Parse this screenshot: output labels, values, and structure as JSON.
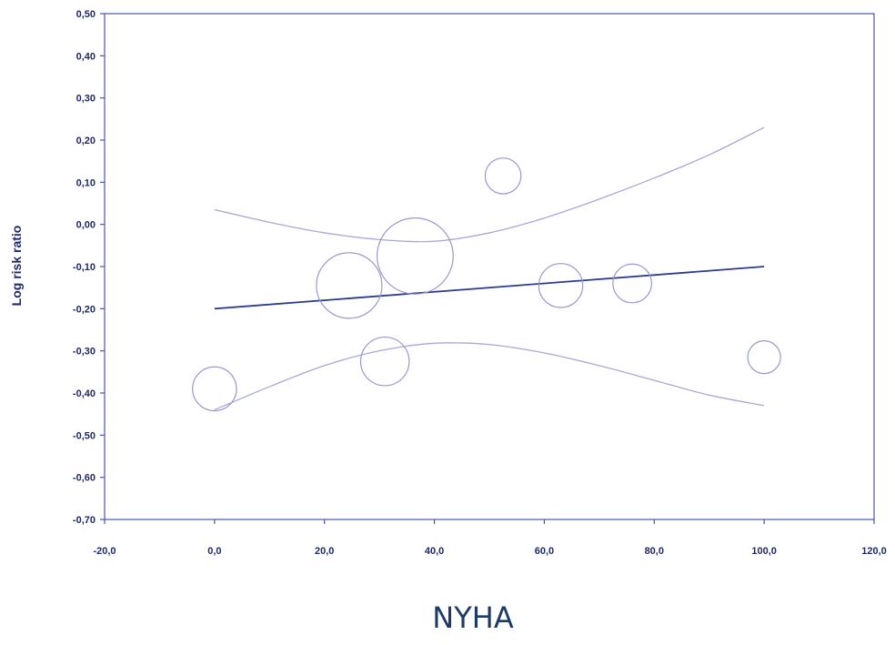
{
  "chart_data": {
    "type": "scatter",
    "title": "",
    "xlabel": "NYHA",
    "ylabel": "Log risk ratio",
    "xlim": [
      -20,
      120
    ],
    "ylim": [
      -0.7,
      0.5
    ],
    "x_ticks": [
      -20,
      0,
      20,
      40,
      60,
      80,
      100,
      120
    ],
    "x_tick_labels": [
      "-20,0",
      "0,0",
      "20,0",
      "40,0",
      "60,0",
      "80,0",
      "100,0",
      "120,0"
    ],
    "y_ticks": [
      0.5,
      0.4,
      0.3,
      0.2,
      0.1,
      0.0,
      -0.1,
      -0.2,
      -0.3,
      -0.4,
      -0.5,
      -0.6,
      -0.7
    ],
    "y_tick_labels": [
      "0,50",
      "0,40",
      "0,30",
      "0,20",
      "0,10",
      "0,00",
      "-0,10",
      "-0,20",
      "-0,30",
      "-0,40",
      "-0,50",
      "-0,60",
      "-0,70"
    ],
    "grid": false,
    "points": [
      {
        "x": 0,
        "y": -0.39,
        "weight": 0.45
      },
      {
        "x": 24.5,
        "y": -0.145,
        "weight": 1.0
      },
      {
        "x": 31,
        "y": -0.325,
        "weight": 0.55
      },
      {
        "x": 36.5,
        "y": -0.075,
        "weight": 1.35
      },
      {
        "x": 52.5,
        "y": 0.115,
        "weight": 0.3
      },
      {
        "x": 63,
        "y": -0.145,
        "weight": 0.45
      },
      {
        "x": 76,
        "y": -0.14,
        "weight": 0.35
      },
      {
        "x": 100,
        "y": -0.315,
        "weight": 0.25
      }
    ],
    "regression_line": {
      "x": [
        0,
        100
      ],
      "y": [
        -0.2,
        -0.1
      ]
    },
    "upper_ci": {
      "x": [
        0,
        10,
        20,
        30,
        40,
        50,
        60,
        70,
        80,
        90,
        100
      ],
      "y": [
        0.035,
        0.005,
        -0.02,
        -0.036,
        -0.04,
        -0.02,
        0.015,
        0.06,
        0.11,
        0.165,
        0.23
      ]
    },
    "lower_ci": {
      "x": [
        0,
        10,
        20,
        30,
        40,
        50,
        60,
        70,
        80,
        90,
        100
      ],
      "y": [
        -0.44,
        -0.385,
        -0.335,
        -0.3,
        -0.282,
        -0.285,
        -0.305,
        -0.335,
        -0.37,
        -0.405,
        -0.43
      ]
    },
    "colors": {
      "axis": "#4a56a6",
      "regression": "#2b3a8f",
      "ci": "#a7a9d6",
      "bubble": "#9799cf",
      "tick_text": "#1f2a66",
      "xlabel_text": "#1e3a66"
    }
  }
}
